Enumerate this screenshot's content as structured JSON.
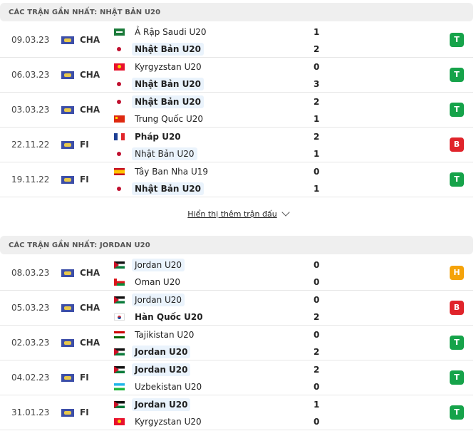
{
  "colors": {
    "T": "#16a34a",
    "B": "#e0242b",
    "H": "#f5a30a"
  },
  "sections": [
    {
      "title": "CÁC TRẬN GẦN NHẤT: NHẬT BẢN U20",
      "show_more": "Hiển thị thêm trận đấu",
      "matches": [
        {
          "date": "09.03.23",
          "comp": "CHA",
          "home": {
            "name": "Ả Rập Saudi U20",
            "flag": "sa",
            "score": "1"
          },
          "away": {
            "name": "Nhật Bản U20",
            "flag": "jp",
            "score": "2"
          },
          "hl": 2,
          "win": 2,
          "result": "T"
        },
        {
          "date": "06.03.23",
          "comp": "CHA",
          "home": {
            "name": "Kyrgyzstan U20",
            "flag": "kg",
            "score": "0"
          },
          "away": {
            "name": "Nhật Bản U20",
            "flag": "jp",
            "score": "3"
          },
          "hl": 2,
          "win": 2,
          "result": "T"
        },
        {
          "date": "03.03.23",
          "comp": "CHA",
          "home": {
            "name": "Nhật Bản U20",
            "flag": "jp",
            "score": "2"
          },
          "away": {
            "name": "Trung Quốc U20",
            "flag": "cn",
            "score": "1"
          },
          "hl": 1,
          "win": 1,
          "result": "T"
        },
        {
          "date": "22.11.22",
          "comp": "FI",
          "home": {
            "name": "Pháp U20",
            "flag": "fr",
            "score": "2"
          },
          "away": {
            "name": "Nhật Bản U20",
            "flag": "jp",
            "score": "1"
          },
          "hl": 2,
          "win": 1,
          "result": "B"
        },
        {
          "date": "19.11.22",
          "comp": "FI",
          "home": {
            "name": "Tây Ban Nha U19",
            "flag": "es",
            "score": "0"
          },
          "away": {
            "name": "Nhật Bản U20",
            "flag": "jp",
            "score": "1"
          },
          "hl": 2,
          "win": 2,
          "result": "T"
        }
      ]
    },
    {
      "title": "CÁC TRẬN GẦN NHẤT: JORDAN U20",
      "matches": [
        {
          "date": "08.03.23",
          "comp": "CHA",
          "home": {
            "name": "Jordan U20",
            "flag": "jo",
            "score": "0"
          },
          "away": {
            "name": "Oman U20",
            "flag": "om",
            "score": "0"
          },
          "hl": 1,
          "win": 0,
          "result": "H"
        },
        {
          "date": "05.03.23",
          "comp": "CHA",
          "home": {
            "name": "Jordan U20",
            "flag": "jo",
            "score": "0"
          },
          "away": {
            "name": "Hàn Quốc U20",
            "flag": "kr",
            "score": "2"
          },
          "hl": 1,
          "win": 2,
          "result": "B"
        },
        {
          "date": "02.03.23",
          "comp": "CHA",
          "home": {
            "name": "Tajikistan U20",
            "flag": "tj",
            "score": "0"
          },
          "away": {
            "name": "Jordan U20",
            "flag": "jo",
            "score": "2"
          },
          "hl": 2,
          "win": 2,
          "result": "T"
        },
        {
          "date": "04.02.23",
          "comp": "FI",
          "home": {
            "name": "Jordan U20",
            "flag": "jo",
            "score": "2"
          },
          "away": {
            "name": "Uzbekistan U20",
            "flag": "uz",
            "score": "0"
          },
          "hl": 1,
          "win": 1,
          "result": "T"
        },
        {
          "date": "31.01.23",
          "comp": "FI",
          "home": {
            "name": "Jordan U20",
            "flag": "jo",
            "score": "1"
          },
          "away": {
            "name": "Kyrgyzstan U20",
            "flag": "kg",
            "score": "0"
          },
          "hl": 1,
          "win": 1,
          "result": "T"
        }
      ]
    }
  ]
}
